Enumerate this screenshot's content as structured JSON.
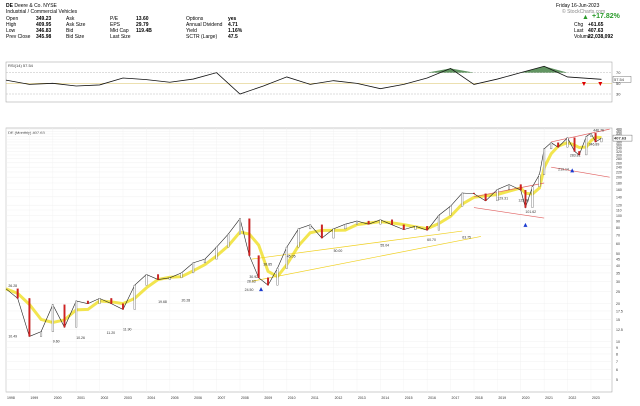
{
  "header": {
    "symbol": "DE",
    "company": "Deere & Co. NYSE",
    "sector": "Industrial / Commercial Vehicles",
    "date": "Friday 16-Jun-2023",
    "watermark": "© StockCharts.com",
    "change_pct": "+17.82%",
    "quote_left": [
      {
        "label": "Open",
        "value": "349.23"
      },
      {
        "label": "High",
        "value": "409.95"
      },
      {
        "label": "Low",
        "value": "346.83"
      },
      {
        "label": "Prev Close",
        "value": "345.98"
      }
    ],
    "quote_mid": [
      {
        "label": "Ask",
        "value": ""
      },
      {
        "label": "Ask Size",
        "value": ""
      },
      {
        "label": "Bid",
        "value": ""
      },
      {
        "label": "Bid Size",
        "value": ""
      }
    ],
    "quote_mid2": [
      {
        "label": "P/E",
        "value": "13.60"
      },
      {
        "label": "EPS",
        "value": "29.79"
      },
      {
        "label": "Mkt Cap",
        "value": "119.4B"
      },
      {
        "label": "Last Size",
        "value": ""
      }
    ],
    "quote_right": [
      {
        "label": "Options",
        "value": "yes"
      },
      {
        "label": "Annual Dividend",
        "value": "4.71"
      },
      {
        "label": "Yield",
        "value": "1.16%"
      },
      {
        "label": "SCTR (Large)",
        "value": "47.5"
      }
    ],
    "quote_far": [
      {
        "label": "Chg",
        "value": "+61.65"
      },
      {
        "label": "Last",
        "value": "407.63"
      },
      {
        "label": "Volume",
        "value": "22,038,092"
      }
    ]
  },
  "chart_data": [
    {
      "type": "line",
      "title": "RSI(14) 57.54",
      "ylim": [
        15,
        90
      ],
      "ticks": [
        30,
        50,
        70
      ],
      "levels": [
        30,
        50,
        70
      ],
      "last_value_label": "57.54",
      "x": [
        1998,
        1999,
        2000,
        2001,
        2002,
        2003,
        2004,
        2005,
        2006,
        2007,
        2008,
        2009,
        2010,
        2011,
        2012,
        2013,
        2014,
        2015,
        2016,
        2017,
        2018,
        2019,
        2020,
        2021,
        2022,
        2023.45
      ],
      "values": [
        56,
        48,
        50,
        45,
        47,
        60,
        57,
        52,
        58,
        70,
        30,
        45,
        62,
        48,
        55,
        50,
        40,
        48,
        60,
        78,
        48,
        58,
        70,
        82,
        62,
        57.5
      ],
      "markers": [
        {
          "x": 2022.7,
          "y": 45
        },
        {
          "x": 2023.4,
          "y": 45
        }
      ]
    },
    {
      "type": "line",
      "title": "DE (Monthly) 407.63",
      "scale": "log",
      "ylim": [
        4,
        490
      ],
      "ticks": [
        5,
        6,
        7,
        8,
        9,
        10,
        12.5,
        15,
        17.5,
        20,
        25,
        30,
        35,
        40,
        45,
        50,
        60,
        70,
        80,
        90,
        100,
        110,
        120,
        140,
        160,
        180,
        200,
        220,
        240,
        260,
        280,
        300,
        320,
        340,
        360,
        380,
        400,
        420,
        440,
        460,
        480
      ],
      "last_value_label": "407.63",
      "x": [
        1998,
        1998.5,
        1999,
        1999.5,
        2000,
        2000.5,
        2001,
        2001.5,
        2002,
        2002.5,
        2003,
        2003.5,
        2004,
        2004.5,
        2005,
        2005.5,
        2006,
        2006.5,
        2007,
        2007.5,
        2008,
        2008.4,
        2008.8,
        2009.2,
        2009.6,
        2010,
        2010.5,
        2011,
        2011.5,
        2012,
        2012.5,
        2013,
        2013.5,
        2014,
        2014.5,
        2015,
        2015.5,
        2016,
        2016.5,
        2017,
        2017.5,
        2018,
        2018.5,
        2019,
        2019.5,
        2020,
        2020.2,
        2020.5,
        2020.8,
        2021,
        2021.3,
        2021.6,
        2022,
        2022.3,
        2022.5,
        2022.8,
        2023,
        2023.2,
        2023.45
      ],
      "values": [
        26.2,
        22,
        11,
        12,
        19.6,
        13,
        21,
        20,
        22,
        20,
        18,
        28,
        34,
        31,
        32,
        35,
        42,
        45,
        56,
        71,
        94,
        48,
        32,
        28,
        38,
        56,
        78,
        84,
        66,
        78,
        85,
        90,
        85,
        92,
        84,
        77,
        82,
        76,
        100,
        118,
        150,
        148,
        130,
        160,
        175,
        158,
        115,
        168,
        210,
        335,
        375,
        345,
        410,
        320,
        300,
        420,
        445,
        380,
        407.63
      ],
      "labels": [
        {
          "x": 1998.1,
          "y": 26.28,
          "text": "26.28"
        },
        {
          "x": 1998.1,
          "y": 10.49,
          "text": "10.49"
        },
        {
          "x": 2000.0,
          "y": 9.6,
          "text": "9.60"
        },
        {
          "x": 2001.0,
          "y": 10.26,
          "text": "10.26"
        },
        {
          "x": 2002.3,
          "y": 11.2,
          "text": "11.20"
        },
        {
          "x": 2003.0,
          "y": 11.9,
          "text": "11.90"
        },
        {
          "x": 2004.5,
          "y": 19.68,
          "text": "19.68"
        },
        {
          "x": 2005.5,
          "y": 20.28,
          "text": "20.28"
        },
        {
          "x": 2008.3,
          "y": 28.63,
          "text": "28.63"
        },
        {
          "x": 2008.2,
          "y": 24.5,
          "text": "24.50"
        },
        {
          "x": 2008.4,
          "y": 30.92,
          "text": "30.92"
        },
        {
          "x": 2009.0,
          "y": 38.85,
          "text": "38.85"
        },
        {
          "x": 2010.0,
          "y": 45.05,
          "text": "45.05"
        },
        {
          "x": 2012.0,
          "y": 50.0,
          "text": "50.00"
        },
        {
          "x": 2014.0,
          "y": 55.04,
          "text": "55.04"
        },
        {
          "x": 2016.0,
          "y": 60.7,
          "text": "60.70"
        },
        {
          "x": 2017.5,
          "y": 63.75,
          "text": "63.75"
        },
        {
          "x": 2019.0,
          "y": 129.31,
          "text": "129.31"
        },
        {
          "x": 2019.9,
          "y": 125.0,
          "text": "125.00"
        },
        {
          "x": 2020.2,
          "y": 101.62,
          "text": "101.62"
        },
        {
          "x": 2021.6,
          "y": 219.14,
          "text": "219.14"
        },
        {
          "x": 2022.1,
          "y": 283.81,
          "text": "283.81"
        },
        {
          "x": 2022.9,
          "y": 346.89,
          "text": "346.89"
        },
        {
          "x": 2023.1,
          "y": 446.76,
          "text": "446.76"
        }
      ],
      "markers": [
        {
          "x": 2008.9,
          "y": 27
        },
        {
          "x": 2020.2,
          "y": 87
        },
        {
          "x": 2022.2,
          "y": 235
        }
      ],
      "x_ticks": [
        1998,
        1999,
        2000,
        2001,
        2002,
        2003,
        2004,
        2005,
        2006,
        2007,
        2008,
        2009,
        2010,
        2011,
        2012,
        2013,
        2014,
        2015,
        2016,
        2017,
        2018,
        2019,
        2020,
        2021,
        2022,
        2023
      ]
    }
  ]
}
